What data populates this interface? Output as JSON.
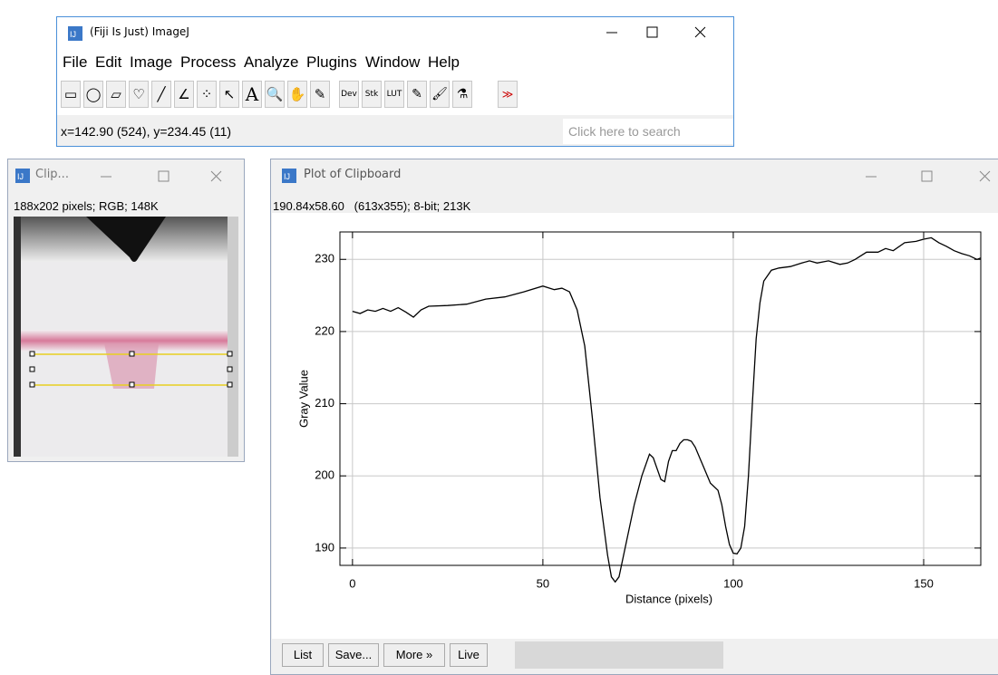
{
  "main_window": {
    "title": "(Fiji Is Just) ImageJ",
    "menu": [
      "File",
      "Edit",
      "Image",
      "Process",
      "Analyze",
      "Plugins",
      "Window",
      "Help"
    ],
    "toolbar_labels": [
      "A",
      "Dev",
      "Stk",
      "LUT",
      "≫"
    ],
    "status": "x=142.90 (524), y=234.45 (11)",
    "search": "Click here to search"
  },
  "image_window": {
    "title": "Clip...",
    "info": "188x202 pixels; RGB; 148K"
  },
  "plot_window": {
    "title": "Plot of Clipboard",
    "info": "190.84x58.60   (613x355); 8-bit; 213K",
    "buttons": [
      "List",
      "Save...",
      "More »",
      "Live"
    ]
  },
  "chart_data": {
    "type": "line",
    "xlabel": "Distance (pixels)",
    "ylabel": "Gray Value",
    "x": [
      0,
      2,
      4,
      6,
      8,
      10,
      12,
      14,
      16,
      18,
      20,
      25,
      30,
      35,
      40,
      45,
      50,
      53,
      55,
      57,
      59,
      61,
      63,
      65,
      67,
      68,
      69,
      70,
      72,
      74,
      76,
      78,
      79,
      81,
      82,
      83,
      84,
      85,
      86,
      87,
      88,
      89,
      90,
      92,
      94,
      96,
      97,
      98,
      99,
      100,
      101,
      102,
      103,
      104,
      105,
      106,
      107,
      108,
      110,
      112,
      115,
      118,
      120,
      122,
      125,
      128,
      130,
      132,
      135,
      138,
      140,
      142,
      145,
      148,
      150,
      152,
      154,
      156,
      158,
      160,
      162,
      164,
      165
    ],
    "series": [
      {
        "color": "#000000",
        "values": [
          222.8,
          222.5,
          223,
          222.8,
          223.2,
          222.8,
          223.3,
          222.7,
          222,
          223,
          223.5,
          223.6,
          223.8,
          224.5,
          224.8,
          225.5,
          226.3,
          225.8,
          226,
          225.5,
          223,
          218,
          208,
          197,
          189,
          186,
          185.3,
          186,
          191,
          196,
          200,
          203,
          202.5,
          199.5,
          199.2,
          202,
          203.5,
          203.5,
          204.5,
          205,
          205,
          204.8,
          204,
          201.5,
          199,
          198,
          196,
          193,
          190.5,
          189.3,
          189.2,
          190,
          193,
          200,
          210,
          219,
          224,
          227,
          228.5,
          228.8,
          229,
          229.5,
          229.8,
          229.5,
          229.8,
          229.3,
          229.5,
          230,
          231,
          231,
          231.5,
          231.2,
          232.3,
          232.5,
          232.8,
          233,
          232.3,
          231.8,
          231.2,
          230.8,
          230.5,
          230,
          230.2
        ]
      }
    ],
    "xlim": [
      -3.3,
      165
    ],
    "ylim": [
      187.6,
      233.8
    ],
    "xticks": [
      0,
      50,
      100,
      150
    ],
    "yticks": [
      190,
      200,
      210,
      220,
      230
    ],
    "grid": true
  }
}
